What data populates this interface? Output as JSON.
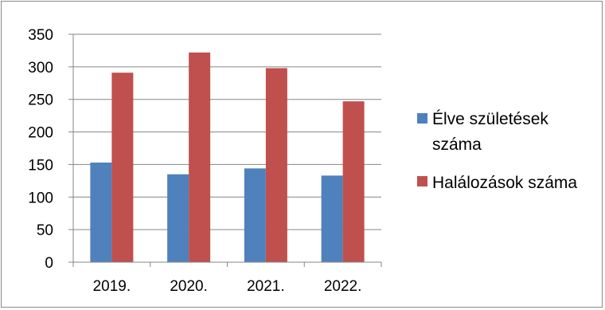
{
  "chart_data": {
    "type": "bar",
    "categories": [
      "2019.",
      "2020.",
      "2021.",
      "2022."
    ],
    "series": [
      {
        "name": "Élve születések száma",
        "values": [
          153,
          135,
          144,
          133
        ],
        "color": "#4f81bd"
      },
      {
        "name": "Halálozások száma",
        "values": [
          291,
          322,
          298,
          247
        ],
        "color": "#c0504d"
      }
    ],
    "ylim": [
      0,
      350
    ],
    "yticks": [
      0,
      50,
      100,
      150,
      200,
      250,
      300,
      350
    ],
    "ytick_labels": [
      "0",
      "50",
      "100",
      "150",
      "200",
      "250",
      "300",
      "350"
    ],
    "grid": true,
    "legend": {
      "position": "right",
      "entries": [
        {
          "lines": [
            "Élve születések",
            "száma"
          ]
        },
        {
          "lines": [
            "Halálozások száma"
          ]
        }
      ]
    }
  }
}
